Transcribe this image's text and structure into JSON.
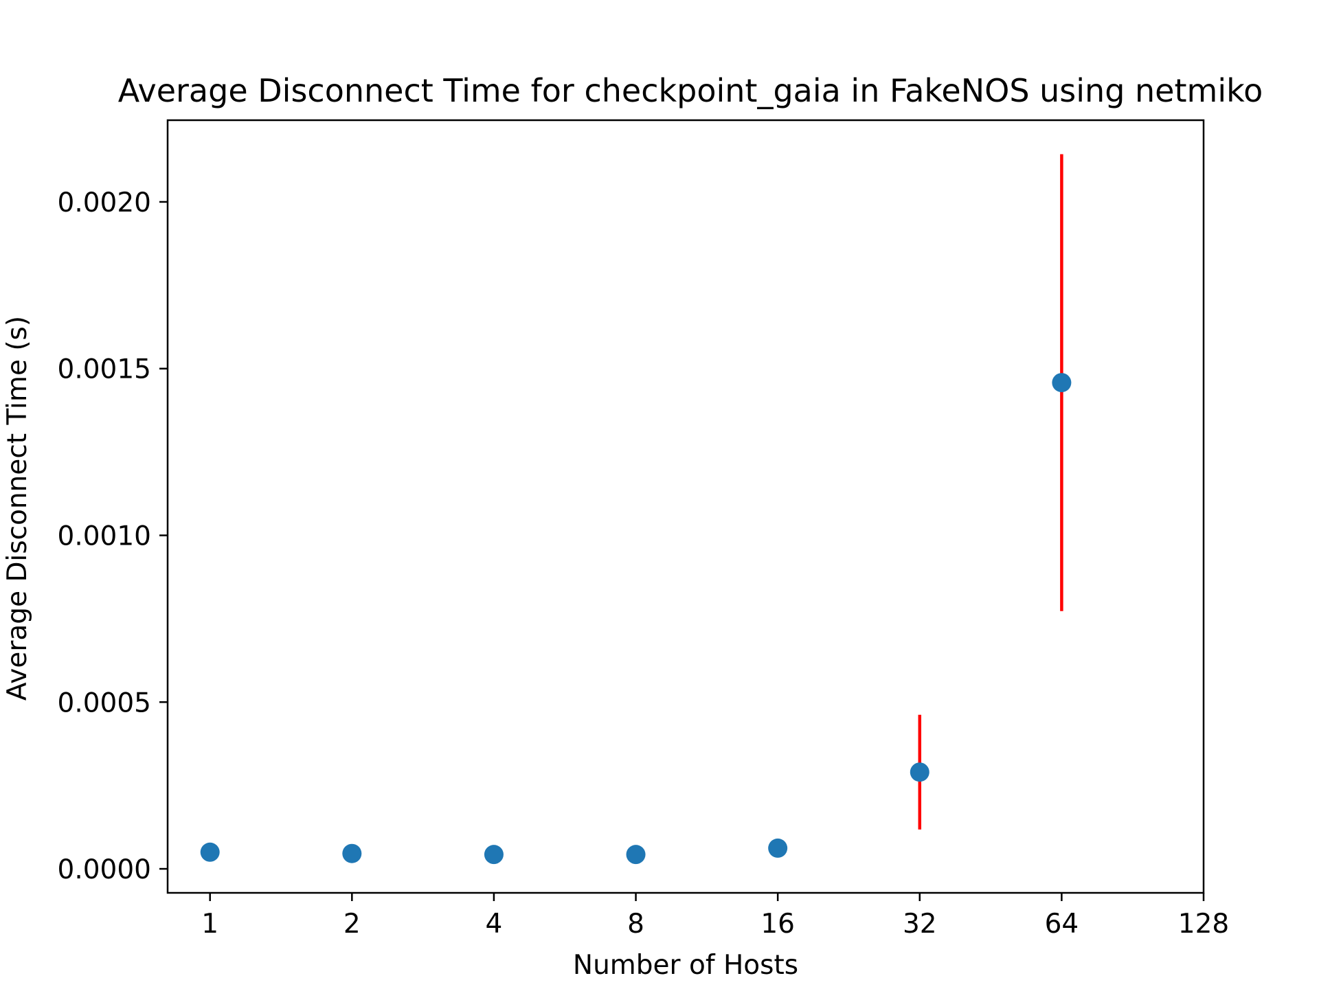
{
  "chart_data": {
    "type": "scatter",
    "title": "Average Disconnect Time for checkpoint_gaia in FakeNOS using netmiko",
    "xlabel": "Number of Hosts",
    "ylabel": "Average Disconnect Time (s)",
    "x_scale": "log2",
    "xlim": [
      0.813,
      128
    ],
    "ylim": [
      -7.2e-05,
      0.002245
    ],
    "x_ticks": [
      1,
      2,
      4,
      8,
      16,
      32,
      64,
      128
    ],
    "x_tick_labels": [
      "1",
      "2",
      "4",
      "8",
      "16",
      "32",
      "64",
      "128"
    ],
    "y_ticks": [
      0.0,
      0.0005,
      0.001,
      0.0015,
      0.002
    ],
    "y_tick_labels": [
      "0.0000",
      "0.0005",
      "0.0010",
      "0.0015",
      "0.0020"
    ],
    "grid": false,
    "marker_color": "#1f77b4",
    "errorbar_color": "#ff0000",
    "x": [
      1,
      2,
      4,
      8,
      16,
      32,
      64
    ],
    "y": [
      5e-05,
      4.6e-05,
      4.3e-05,
      4.3e-05,
      6.2e-05,
      0.00029,
      0.001458
    ],
    "yerr": [
      null,
      null,
      null,
      null,
      null,
      0.000172,
      0.000685
    ]
  }
}
